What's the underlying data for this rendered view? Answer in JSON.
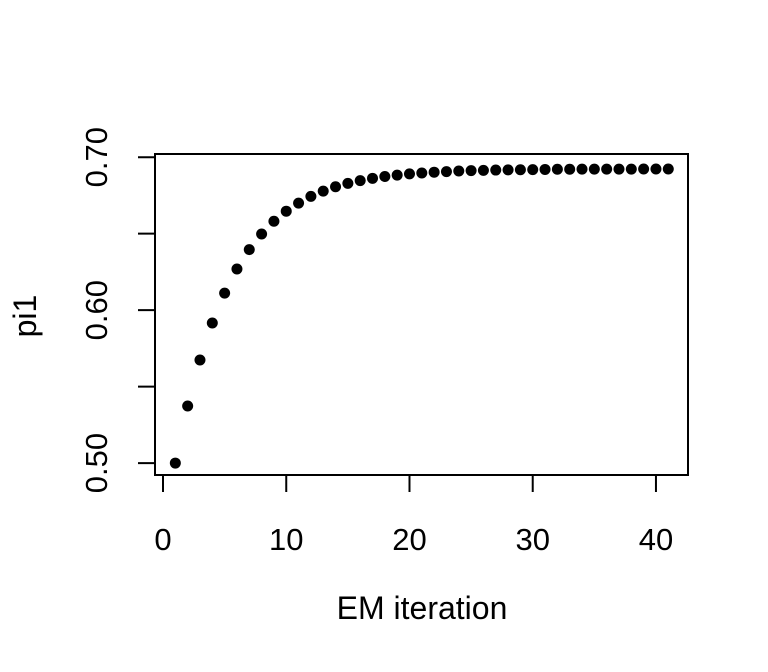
{
  "page": {
    "background_color": "#ffffff",
    "foreground_color": "#000000"
  },
  "chart_data": {
    "type": "scatter",
    "title": "",
    "xlabel": "EM iteration",
    "ylabel": "pi1",
    "legend": null,
    "grid": false,
    "box": true,
    "marker": {
      "shape": "filled-circle",
      "color": "#000000",
      "radius_px": 5.5
    },
    "xlim": [
      -0.65,
      42.6
    ],
    "ylim": [
      0.4922,
      0.7021
    ],
    "x_ticks": [
      0,
      10,
      20,
      30,
      40
    ],
    "x_tick_labels": [
      "0",
      "10",
      "20",
      "30",
      "40"
    ],
    "y_ticks": [
      0.5,
      0.55,
      0.6,
      0.65,
      0.7
    ],
    "y_tick_labels": [
      "0.50",
      "",
      "0.60",
      "",
      "0.70"
    ],
    "x": [
      1,
      2,
      3,
      4,
      5,
      6,
      7,
      8,
      9,
      10,
      11,
      12,
      13,
      14,
      15,
      16,
      17,
      18,
      19,
      20,
      21,
      22,
      23,
      24,
      25,
      26,
      27,
      28,
      29,
      30,
      31,
      32,
      33,
      34,
      35,
      36,
      37,
      38,
      39,
      40,
      41
    ],
    "y": [
      0.5,
      0.5373,
      0.5674,
      0.5916,
      0.6111,
      0.6269,
      0.6396,
      0.6498,
      0.6581,
      0.6647,
      0.67,
      0.6744,
      0.6778,
      0.6807,
      0.6829,
      0.6847,
      0.6862,
      0.6874,
      0.6883,
      0.6891,
      0.6897,
      0.6902,
      0.6906,
      0.691,
      0.6912,
      0.6914,
      0.6916,
      0.6917,
      0.6918,
      0.6919,
      0.692,
      0.6921,
      0.6921,
      0.6922,
      0.6922,
      0.6922,
      0.6922,
      0.6922,
      0.6923,
      0.6923,
      0.6923
    ]
  }
}
